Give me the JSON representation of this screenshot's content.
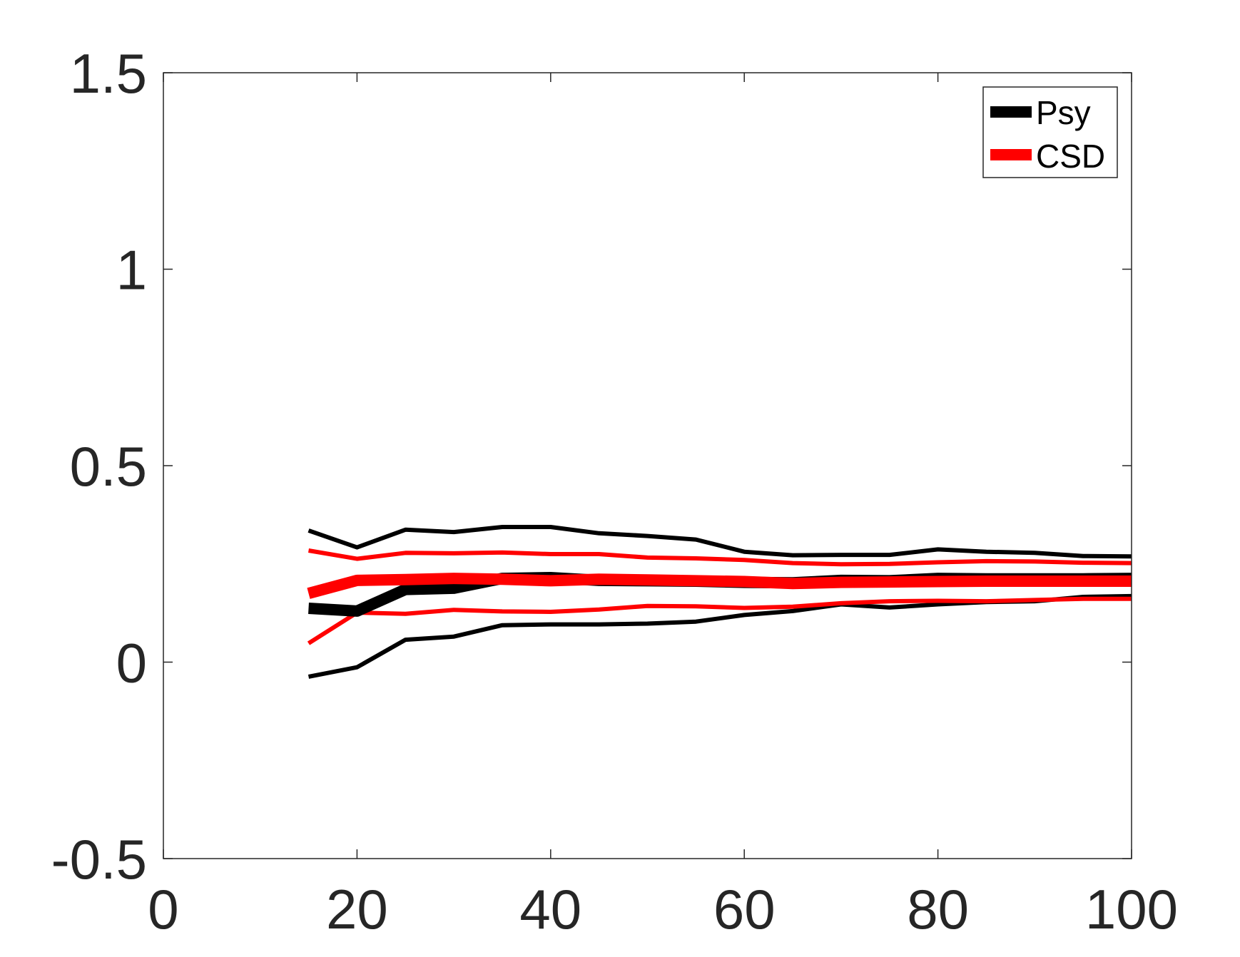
{
  "chart_data": {
    "type": "line",
    "title": "",
    "xlabel": "",
    "ylabel": "",
    "xlim": [
      0,
      100
    ],
    "ylim": [
      -0.5,
      1.5
    ],
    "xticks": [
      "0",
      "20",
      "40",
      "60",
      "80",
      "100"
    ],
    "yticks": [
      "-0.5",
      "0",
      "0.5",
      "1",
      "1.5"
    ],
    "grid": false,
    "legend_position": "top-right",
    "x": [
      15,
      20,
      25,
      30,
      35,
      40,
      45,
      50,
      55,
      60,
      65,
      70,
      75,
      80,
      85,
      90,
      95,
      100
    ],
    "series": [
      {
        "name": "Psy",
        "color": "#000000",
        "role": "mean",
        "values": [
          0.137,
          0.13,
          0.185,
          0.188,
          0.213,
          0.215,
          0.208,
          0.207,
          0.206,
          0.203,
          0.202,
          0.208,
          0.207,
          0.213,
          0.212,
          0.212,
          0.212,
          0.213
        ]
      },
      {
        "name": "",
        "color": "#000000",
        "role": "upper-bound",
        "values": [
          0.335,
          0.292,
          0.337,
          0.331,
          0.344,
          0.344,
          0.328,
          0.321,
          0.312,
          0.281,
          0.272,
          0.273,
          0.273,
          0.287,
          0.281,
          0.278,
          0.27,
          0.269
        ]
      },
      {
        "name": "",
        "color": "#000000",
        "role": "lower-bound",
        "values": [
          -0.037,
          -0.013,
          0.057,
          0.065,
          0.094,
          0.096,
          0.096,
          0.098,
          0.103,
          0.12,
          0.13,
          0.147,
          0.139,
          0.147,
          0.153,
          0.155,
          0.166,
          0.168
        ]
      },
      {
        "name": "CSD",
        "color": "#ff0000",
        "role": "mean",
        "values": [
          0.175,
          0.208,
          0.21,
          0.213,
          0.211,
          0.207,
          0.211,
          0.209,
          0.207,
          0.205,
          0.2,
          0.203,
          0.204,
          0.205,
          0.206,
          0.206,
          0.206,
          0.206
        ]
      },
      {
        "name": "",
        "color": "#ff0000",
        "role": "upper-bound",
        "values": [
          0.284,
          0.263,
          0.278,
          0.277,
          0.279,
          0.275,
          0.275,
          0.266,
          0.264,
          0.26,
          0.252,
          0.249,
          0.25,
          0.254,
          0.257,
          0.256,
          0.253,
          0.252
        ]
      },
      {
        "name": "",
        "color": "#ff0000",
        "role": "lower-bound",
        "values": [
          0.048,
          0.126,
          0.123,
          0.133,
          0.129,
          0.128,
          0.134,
          0.143,
          0.142,
          0.138,
          0.141,
          0.15,
          0.155,
          0.156,
          0.155,
          0.158,
          0.161,
          0.161
        ]
      }
    ]
  }
}
